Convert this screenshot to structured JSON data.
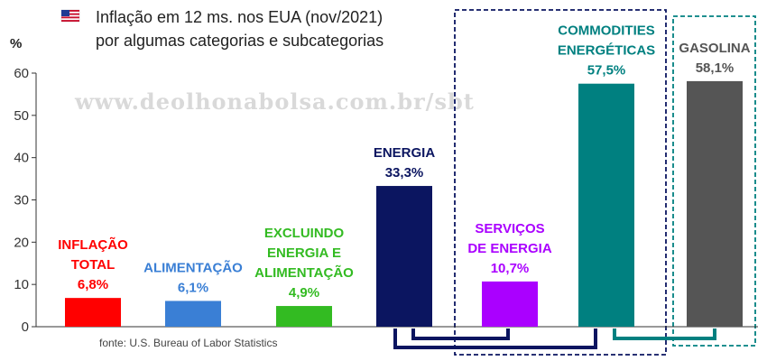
{
  "title_lines": [
    "Inflação em 12 ms. nos EUA (nov/2021)",
    "por algumas categorias e subcategorias"
  ],
  "flag_icon": "us-flag-icon",
  "watermark": "www.deolhonabolsa.com.br/sbt",
  "source": "fonte: U.S. Bureau of Labor Statistics",
  "chart_data": {
    "type": "bar",
    "title": "Inflação em 12 ms. nos EUA (nov/2021) por algumas categorias e subcategorias",
    "ylabel": "%",
    "ylim": [
      0,
      60
    ],
    "yticks": [
      0,
      10,
      20,
      30,
      40,
      50,
      60
    ],
    "grid": false,
    "categories": [
      {
        "label_lines": [
          "INFLAÇÃO",
          "TOTAL"
        ],
        "value_text": "6,8%"
      },
      {
        "label_lines": [
          "ALIMENTAÇÃO"
        ],
        "value_text": "6,1%"
      },
      {
        "label_lines": [
          "EXCLUINDO",
          "ENERGIA E",
          "ALIMENTAÇÃO"
        ],
        "value_text": "4,9%"
      },
      {
        "label_lines": [
          "ENERGIA"
        ],
        "value_text": "33,3%"
      },
      {
        "label_lines": [
          "SERVIÇOS",
          "DE ENERGIA"
        ],
        "value_text": "10,7%"
      },
      {
        "label_lines": [
          "COMMODITIES",
          "ENERGÉTICAS"
        ],
        "value_text": "57,5%"
      },
      {
        "label_lines": [
          "GASOLINA"
        ],
        "value_text": "58,1%"
      }
    ],
    "values": [
      6.8,
      6.1,
      4.9,
      33.3,
      10.7,
      57.5,
      58.1
    ],
    "colors": [
      "#ff0000",
      "#3a7fd5",
      "#33bb22",
      "#0b1560",
      "#aa00ff",
      "#008080",
      "#555555"
    ],
    "group_colors": {
      "energy": "#0b1560",
      "commodities": "#008080"
    }
  }
}
